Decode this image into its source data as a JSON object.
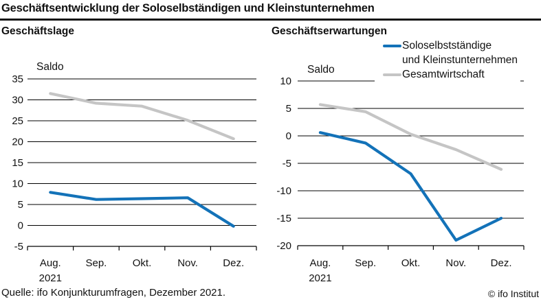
{
  "header": {
    "title": "Geschäftsentwicklung der Soloselbständigen und Kleinstunternehmen"
  },
  "legend": {
    "items": [
      {
        "name": "soloselbststaendige",
        "label_lines": [
          "Soloselbstständige",
          "und Kleinstunternehmen"
        ],
        "color": "#1372b8"
      },
      {
        "name": "gesamtwirtschaft",
        "label_lines": [
          "Gesamtwirtschaft"
        ],
        "color": "#c5c5c5"
      }
    ]
  },
  "colors": {
    "line_blue": "#1372b8",
    "line_gray": "#c5c5c5",
    "axis_black": "#000000",
    "text": "#111111"
  },
  "chart_data": [
    {
      "type": "line",
      "title": "Geschäftslage",
      "ylabel": "Saldo",
      "categories": [
        "Aug.",
        "Sep.",
        "Okt.",
        "Nov.",
        "Dez."
      ],
      "x_sublabel": "2021",
      "x_sublabel_under": "Aug.",
      "ylim": [
        -5,
        35
      ],
      "ytick_step": 5,
      "grid": true,
      "series": [
        {
          "name": "Soloselbstständige und Kleinstunternehmen",
          "color": "#1372b8",
          "values": [
            7.9,
            6.2,
            6.4,
            6.6,
            -0.2
          ]
        },
        {
          "name": "Gesamtwirtschaft",
          "color": "#c5c5c5",
          "values": [
            31.5,
            29.2,
            28.5,
            25.1,
            20.7
          ]
        }
      ]
    },
    {
      "type": "line",
      "title": "Geschäftserwartungen",
      "ylabel": "Saldo",
      "categories": [
        "Aug.",
        "Sep.",
        "Okt.",
        "Nov.",
        "Dez."
      ],
      "x_sublabel": "2021",
      "x_sublabel_under": "Aug.",
      "ylim": [
        -20,
        10
      ],
      "ytick_step": 5,
      "grid": true,
      "legend_position": "top-right",
      "series": [
        {
          "name": "Soloselbstständige und Kleinstunternehmen",
          "color": "#1372b8",
          "values": [
            0.6,
            -1.3,
            -6.9,
            -19.0,
            -15.0
          ]
        },
        {
          "name": "Gesamtwirtschaft",
          "color": "#c5c5c5",
          "values": [
            5.7,
            4.4,
            0.3,
            -2.5,
            -6.1
          ]
        }
      ]
    }
  ],
  "footer": {
    "source": "Quelle: ifo Konjunkturumfragen, Dezember 2021.",
    "copyright": "© ifo Institut"
  }
}
